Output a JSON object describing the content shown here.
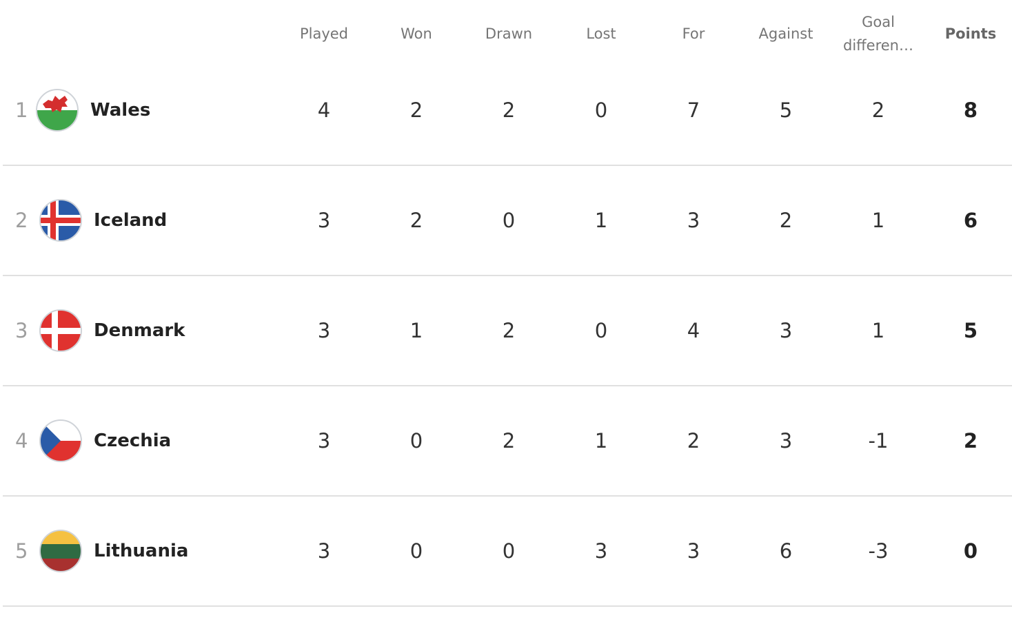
{
  "columns": {
    "played": "Played",
    "won": "Won",
    "drawn": "Drawn",
    "lost": "Lost",
    "for": "For",
    "against": "Against",
    "goal_difference": "Goal differen…",
    "points": "Points"
  },
  "rows": [
    {
      "rank": "1",
      "team": "Wales",
      "flag": "wales-flag-icon",
      "played": "4",
      "won": "2",
      "drawn": "2",
      "lost": "0",
      "for": "7",
      "against": "5",
      "goal_difference": "2",
      "points": "8"
    },
    {
      "rank": "2",
      "team": "Iceland",
      "flag": "iceland-flag-icon",
      "played": "3",
      "won": "2",
      "drawn": "0",
      "lost": "1",
      "for": "3",
      "against": "2",
      "goal_difference": "1",
      "points": "6"
    },
    {
      "rank": "3",
      "team": "Denmark",
      "flag": "denmark-flag-icon",
      "played": "3",
      "won": "1",
      "drawn": "2",
      "lost": "0",
      "for": "4",
      "against": "3",
      "goal_difference": "1",
      "points": "5"
    },
    {
      "rank": "4",
      "team": "Czechia",
      "flag": "czechia-flag-icon",
      "played": "3",
      "won": "0",
      "drawn": "2",
      "lost": "1",
      "for": "2",
      "against": "3",
      "goal_difference": "-1",
      "points": "2"
    },
    {
      "rank": "5",
      "team": "Lithuania",
      "flag": "lithuania-flag-icon",
      "played": "3",
      "won": "0",
      "drawn": "0",
      "lost": "3",
      "for": "3",
      "against": "6",
      "goal_difference": "-3",
      "points": "0"
    }
  ]
}
